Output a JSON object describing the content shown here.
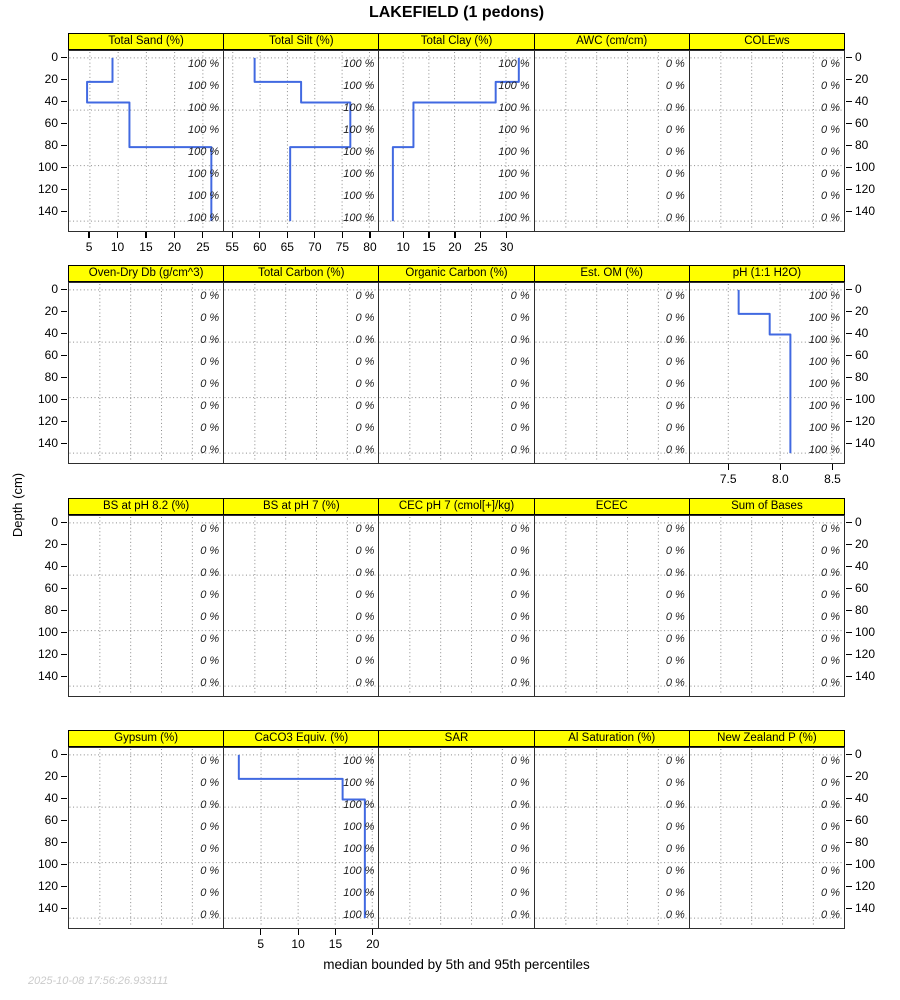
{
  "title": "LAKEFIELD (1 pedons)",
  "caption": "median bounded by 5th and 95th percentiles",
  "timestamp": "2025-10-08 17:56:26.933111",
  "y_axis": {
    "label": "Depth (cm)",
    "ticks": [
      0,
      20,
      40,
      60,
      80,
      100,
      120,
      140
    ],
    "tick_labels": [
      "0",
      "20",
      "40",
      "60",
      "80",
      "100",
      "120",
      "140"
    ],
    "range": [
      -6,
      159
    ]
  },
  "colors": {
    "strip_bg": "#ffff00",
    "profile_line": "#4169e1",
    "grid": "#8a8a8a",
    "border": "#2e2e2e",
    "timestamp_text": "#cbcbcb"
  },
  "chart_data": {
    "type": "line",
    "description": "Soil property depth profiles (step functions of median value vs depth) with per-slab contributing fraction labels",
    "hline_depths": [
      0,
      48,
      99,
      150
    ],
    "contrib_depths": [
      5,
      25,
      45,
      65,
      85,
      105,
      125,
      145
    ],
    "rows": [
      {
        "panels": [
          {
            "label": "Total Sand (%)",
            "contrib": "100 %",
            "xticks": [
              5,
              10,
              15,
              20,
              25
            ],
            "xtick_labels": [
              "5",
              "10",
              "15",
              "20",
              "25"
            ],
            "xdomain": [
              1.3,
              28.6
            ],
            "profile": {
              "depths": [
                0,
                22,
                41,
                82,
                150
              ],
              "values": [
                9,
                4.5,
                12,
                26.5
              ]
            }
          },
          {
            "label": "Total Silt (%)",
            "contrib": "100 %",
            "xticks": [
              55,
              60,
              65,
              70,
              75,
              80
            ],
            "xtick_labels": [
              "55",
              "60",
              "65",
              "70",
              "75",
              "80"
            ],
            "xdomain": [
              53.4,
              81.6
            ],
            "profile": {
              "depths": [
                0,
                22,
                41,
                82,
                150
              ],
              "values": [
                59,
                67.5,
                76.5,
                65.5
              ]
            }
          },
          {
            "label": "Total Clay (%)",
            "contrib": "100 %",
            "xticks": [
              10,
              15,
              20,
              25,
              30
            ],
            "xtick_labels": [
              "10",
              "15",
              "20",
              "25",
              "30"
            ],
            "xdomain": [
              5.3,
              35.3
            ],
            "profile": {
              "depths": [
                0,
                22,
                41,
                82,
                150
              ],
              "values": [
                32.5,
                28,
                12,
                8
              ]
            }
          },
          {
            "label": "AWC (cm/cm)",
            "contrib": "0 %"
          },
          {
            "label": "COLEws",
            "contrib": "0 %"
          }
        ]
      },
      {
        "panels": [
          {
            "label": "Oven-Dry Db (g/cm^3)",
            "contrib": "0 %"
          },
          {
            "label": "Total Carbon (%)",
            "contrib": "0 %"
          },
          {
            "label": "Organic Carbon (%)",
            "contrib": "0 %"
          },
          {
            "label": "Est. OM (%)",
            "contrib": "0 %"
          },
          {
            "label": "pH (1:1 H2O)",
            "contrib": "100 %",
            "xticks": [
              7.5,
              8.0,
              8.5
            ],
            "xtick_labels": [
              "7.5",
              "8.0",
              "8.5"
            ],
            "xdomain": [
              7.13,
              8.62
            ],
            "profile": {
              "depths": [
                0,
                22,
                41,
                150
              ],
              "values": [
                7.6,
                7.9,
                8.1
              ]
            }
          }
        ]
      },
      {
        "panels": [
          {
            "label": "BS at pH 8.2 (%)",
            "contrib": "0 %"
          },
          {
            "label": "BS at pH 7 (%)",
            "contrib": "0 %"
          },
          {
            "label": "CEC pH 7 (cmol[+]/kg)",
            "contrib": "0 %"
          },
          {
            "label": "ECEC",
            "contrib": "0 %"
          },
          {
            "label": "Sum of Bases",
            "contrib": "0 %"
          }
        ]
      },
      {
        "panels": [
          {
            "label": "Gypsum (%)",
            "contrib": "0 %"
          },
          {
            "label": "CaCO3 Equiv. (%)",
            "contrib": "100 %",
            "xticks": [
              5,
              10,
              15,
              20
            ],
            "xtick_labels": [
              "5",
              "10",
              "15",
              "20"
            ],
            "xdomain": [
              0,
              20.8
            ],
            "profile": {
              "depths": [
                0,
                22,
                41,
                150
              ],
              "values": [
                2,
                16,
                19
              ]
            }
          },
          {
            "label": "SAR",
            "contrib": "0 %"
          },
          {
            "label": "Al Saturation (%)",
            "contrib": "0 %"
          },
          {
            "label": "New Zealand P (%)",
            "contrib": "0 %"
          }
        ]
      }
    ]
  }
}
